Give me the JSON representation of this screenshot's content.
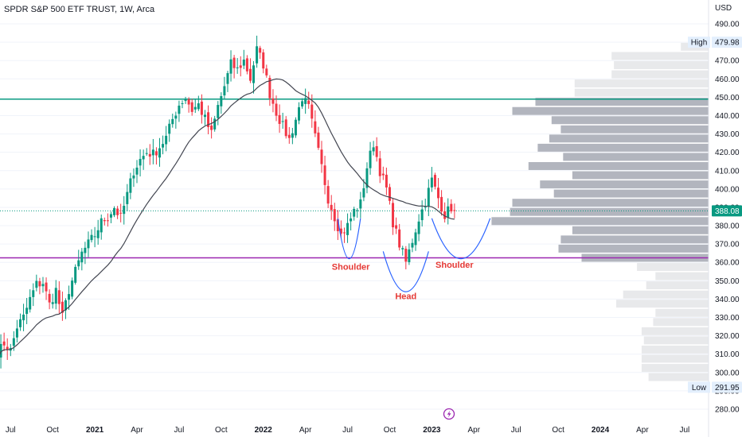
{
  "header": {
    "title": "SPDR S&P 500 ETF TRUST, 1W, Arca"
  },
  "chart_data": {
    "type": "candlestick",
    "currency": "USD",
    "ylim": [
      275,
      497
    ],
    "y_ticks": [
      280,
      290,
      300,
      310,
      320,
      330,
      340,
      350,
      360,
      370,
      380,
      390,
      400,
      410,
      420,
      430,
      440,
      450,
      460,
      470,
      480,
      490
    ],
    "y_tick_labels": [
      "280.00",
      "290.00",
      "300.00",
      "310.00",
      "320.00",
      "330.00",
      "340.00",
      "350.00",
      "360.00",
      "370.00",
      "380.00",
      "390.00",
      "400.00",
      "410.00",
      "420.00",
      "430.00",
      "440.00",
      "450.00",
      "460.00",
      "470.00",
      "480.00",
      "490.00"
    ],
    "x_labels": [
      {
        "label": "Jul",
        "bold": false
      },
      {
        "label": "Oct",
        "bold": false
      },
      {
        "label": "2021",
        "bold": true
      },
      {
        "label": "Apr",
        "bold": false
      },
      {
        "label": "Jul",
        "bold": false
      },
      {
        "label": "Oct",
        "bold": false
      },
      {
        "label": "2022",
        "bold": true
      },
      {
        "label": "Apr",
        "bold": false
      },
      {
        "label": "Jul",
        "bold": false
      },
      {
        "label": "Oct",
        "bold": false
      },
      {
        "label": "2023",
        "bold": true
      },
      {
        "label": "Apr",
        "bold": false
      },
      {
        "label": "Jul",
        "bold": false
      },
      {
        "label": "Oct",
        "bold": false
      },
      {
        "label": "2024",
        "bold": true
      },
      {
        "label": "Apr",
        "bold": false
      },
      {
        "label": "Jul",
        "bold": false
      }
    ],
    "weeks_per_label": 13,
    "first_label_week": 4,
    "price_anchors": [
      [
        0,
        310
      ],
      [
        2,
        316
      ],
      [
        4,
        312
      ],
      [
        6,
        325
      ],
      [
        8,
        330
      ],
      [
        10,
        340
      ],
      [
        12,
        348
      ],
      [
        14,
        349
      ],
      [
        16,
        337
      ],
      [
        18,
        345
      ],
      [
        20,
        330
      ],
      [
        22,
        345
      ],
      [
        24,
        355
      ],
      [
        26,
        365
      ],
      [
        28,
        370
      ],
      [
        30,
        375
      ],
      [
        32,
        382
      ],
      [
        34,
        385
      ],
      [
        36,
        390
      ],
      [
        38,
        384
      ],
      [
        40,
        397
      ],
      [
        42,
        410
      ],
      [
        44,
        416
      ],
      [
        46,
        420
      ],
      [
        48,
        419
      ],
      [
        50,
        423
      ],
      [
        52,
        428
      ],
      [
        54,
        438
      ],
      [
        56,
        446
      ],
      [
        58,
        450
      ],
      [
        60,
        443
      ],
      [
        62,
        446
      ],
      [
        64,
        438
      ],
      [
        66,
        430
      ],
      [
        68,
        445
      ],
      [
        70,
        456
      ],
      [
        72,
        468
      ],
      [
        74,
        465
      ],
      [
        76,
        470
      ],
      [
        78,
        460
      ],
      [
        80,
        476
      ],
      [
        82,
        468
      ],
      [
        84,
        452
      ],
      [
        86,
        442
      ],
      [
        88,
        434
      ],
      [
        90,
        427
      ],
      [
        92,
        438
      ],
      [
        94,
        450
      ],
      [
        96,
        444
      ],
      [
        98,
        428
      ],
      [
        100,
        412
      ],
      [
        102,
        395
      ],
      [
        104,
        385
      ],
      [
        106,
        375
      ],
      [
        108,
        380
      ],
      [
        110,
        388
      ],
      [
        112,
        392
      ],
      [
        114,
        412
      ],
      [
        116,
        425
      ],
      [
        118,
        410
      ],
      [
        120,
        400
      ],
      [
        122,
        382
      ],
      [
        124,
        370
      ],
      [
        126,
        360
      ],
      [
        128,
        372
      ],
      [
        130,
        384
      ],
      [
        132,
        393
      ],
      [
        134,
        405
      ],
      [
        136,
        395
      ],
      [
        138,
        386
      ],
      [
        140,
        390
      ],
      [
        141,
        388
      ]
    ],
    "candle_count": 142,
    "last_price": 388.08,
    "last_price_label": "388.08",
    "high": 479.98,
    "high_label": "High",
    "high_value_label": "479.98",
    "low": 291.95,
    "low_label": "Low",
    "low_value_label": "291.95",
    "horizontal_levels": [
      {
        "price": 449.0,
        "color": "#089981"
      },
      {
        "price": 362.5,
        "color": "#9c27b0"
      }
    ],
    "moving_average": {
      "period": 20,
      "color": "#434651"
    },
    "volume_profile": {
      "price_step": 5,
      "bins": [
        {
          "from": 295,
          "to": 300,
          "value": 0.26
        },
        {
          "from": 300,
          "to": 305,
          "value": 0.29
        },
        {
          "from": 305,
          "to": 310,
          "value": 0.29
        },
        {
          "from": 310,
          "to": 315,
          "value": 0.29
        },
        {
          "from": 315,
          "to": 320,
          "value": 0.28
        },
        {
          "from": 320,
          "to": 325,
          "value": 0.29
        },
        {
          "from": 325,
          "to": 330,
          "value": 0.24
        },
        {
          "from": 330,
          "to": 335,
          "value": 0.23
        },
        {
          "from": 335,
          "to": 340,
          "value": 0.4
        },
        {
          "from": 340,
          "to": 345,
          "value": 0.37
        },
        {
          "from": 345,
          "to": 350,
          "value": 0.27
        },
        {
          "from": 350,
          "to": 355,
          "value": 0.23
        },
        {
          "from": 355,
          "to": 360,
          "value": 0.31
        },
        {
          "from": 360,
          "to": 365,
          "value": 0.55
        },
        {
          "from": 365,
          "to": 370,
          "value": 0.65
        },
        {
          "from": 370,
          "to": 375,
          "value": 0.64
        },
        {
          "from": 375,
          "to": 380,
          "value": 0.59
        },
        {
          "from": 380,
          "to": 385,
          "value": 0.94
        },
        {
          "from": 385,
          "to": 390,
          "value": 0.86
        },
        {
          "from": 390,
          "to": 395,
          "value": 0.85
        },
        {
          "from": 395,
          "to": 400,
          "value": 0.67
        },
        {
          "from": 400,
          "to": 405,
          "value": 0.73
        },
        {
          "from": 405,
          "to": 410,
          "value": 0.59
        },
        {
          "from": 410,
          "to": 415,
          "value": 0.78
        },
        {
          "from": 415,
          "to": 420,
          "value": 0.63
        },
        {
          "from": 420,
          "to": 425,
          "value": 0.74
        },
        {
          "from": 425,
          "to": 430,
          "value": 0.69
        },
        {
          "from": 430,
          "to": 435,
          "value": 0.64
        },
        {
          "from": 435,
          "to": 440,
          "value": 0.68
        },
        {
          "from": 440,
          "to": 445,
          "value": 0.85
        },
        {
          "from": 445,
          "to": 450,
          "value": 0.75
        },
        {
          "from": 450,
          "to": 455,
          "value": 0.58
        },
        {
          "from": 455,
          "to": 460,
          "value": 0.58
        },
        {
          "from": 460,
          "to": 465,
          "value": 0.42
        },
        {
          "from": 465,
          "to": 470,
          "value": 0.41
        },
        {
          "from": 470,
          "to": 475,
          "value": 0.42
        },
        {
          "from": 475,
          "to": 480,
          "value": 0.12
        }
      ],
      "value_area": [
        360,
        450
      ],
      "colors": {
        "inside": "#b2b5be",
        "outside": "#e8e9eb"
      }
    },
    "pattern_curves": [
      {
        "name": "left-shoulder",
        "from_week": 105,
        "to_week": 112,
        "bottom": 362
      },
      {
        "name": "head",
        "from_week": 119,
        "to_week": 133,
        "bottom": 344
      },
      {
        "name": "right-shoulder",
        "from_week": 134,
        "to_week": 152,
        "bottom": 362
      }
    ],
    "annotations": [
      {
        "text": "Shoulder",
        "week": 109,
        "price": 356
      },
      {
        "text": "Head",
        "week": 126,
        "price": 340
      },
      {
        "text": "Shoulder",
        "week": 141,
        "price": 357
      }
    ],
    "colors": {
      "up": "#089981",
      "down": "#f23645",
      "grid": "#f0f3fa",
      "last_price_line": "#089981",
      "anno": "#e53935",
      "curve": "#2962ff"
    }
  }
}
